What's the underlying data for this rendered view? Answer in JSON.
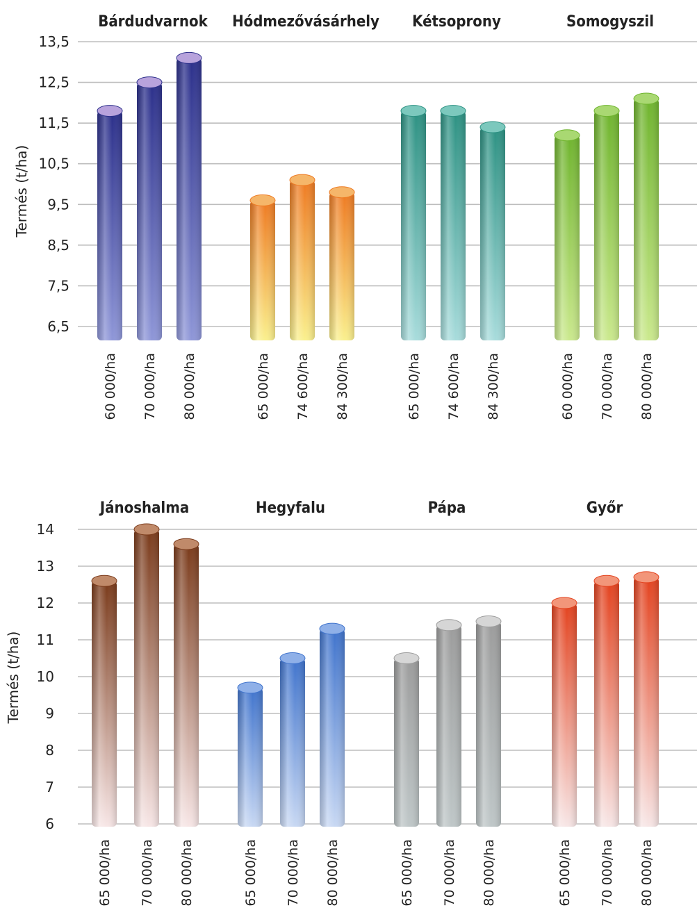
{
  "chart_data": [
    {
      "type": "bar",
      "ylabel": "Termés (t/ha)",
      "ylim": [
        6.2,
        13.5
      ],
      "yticks": [
        "13,5",
        "12,5",
        "11,5",
        "10,5",
        "9,5",
        "8,5",
        "7,5",
        "6,5"
      ],
      "ytick_values": [
        13.5,
        12.5,
        11.5,
        10.5,
        9.5,
        8.5,
        7.5,
        6.5
      ],
      "grid": true,
      "groups": [
        {
          "name": "Bárdudvarnok",
          "categories": [
            "60 000/ha",
            "70 000/ha",
            "80 000/ha"
          ],
          "values": [
            11.8,
            12.5,
            13.1
          ],
          "color_top": "#2b2f8a",
          "color_bottom": "#8f97d8",
          "cap": "#b8a3dc"
        },
        {
          "name": "Hódmezővásárhely",
          "categories": [
            "65 000/ha",
            "74 600/ha",
            "84 300/ha"
          ],
          "values": [
            9.6,
            10.1,
            9.8
          ],
          "color_top": "#ee7a22",
          "color_bottom": "#faf08e",
          "cap": "#f5b66a"
        },
        {
          "name": "Kétsoprony",
          "categories": [
            "65 000/ha",
            "74 600/ha",
            "84 300/ha"
          ],
          "values": [
            11.8,
            11.8,
            11.4
          ],
          "color_top": "#2c9182",
          "color_bottom": "#a8dcdc",
          "cap": "#7cc8bd"
        },
        {
          "name": "Somogyszil",
          "categories": [
            "60 000/ha",
            "70 000/ha",
            "80 000/ha"
          ],
          "values": [
            11.2,
            11.8,
            12.1
          ],
          "color_top": "#6fb42e",
          "color_bottom": "#cbe98e",
          "cap": "#a9d872"
        }
      ]
    },
    {
      "type": "bar",
      "ylabel": "Termés (t/ha)",
      "ylim": [
        5.8,
        14
      ],
      "yticks": [
        "14",
        "13",
        "12",
        "11",
        "10",
        "9",
        "8",
        "7",
        "6"
      ],
      "ytick_values": [
        14,
        13,
        12,
        11,
        10,
        9,
        8,
        7,
        6
      ],
      "grid": true,
      "groups": [
        {
          "name": "Jánoshalma",
          "categories": [
            "65 000/ha",
            "70 000/ha",
            "80 000/ha"
          ],
          "values": [
            12.6,
            14.0,
            13.6
          ],
          "color_top": "#7a3a1a",
          "color_bottom": "#f7e6e6",
          "cap": "#c08a6a"
        },
        {
          "name": "Hegyfalu",
          "categories": [
            "65 000/ha",
            "70 000/ha",
            "80 000/ha"
          ],
          "values": [
            9.7,
            10.5,
            11.3
          ],
          "color_top": "#3f73cc",
          "color_bottom": "#c8d8f3",
          "cap": "#8fb0e8"
        },
        {
          "name": "Pápa",
          "categories": [
            "65 000/ha",
            "70 000/ha",
            "80 000/ha"
          ],
          "values": [
            10.5,
            11.4,
            11.5
          ],
          "color_top": "#9c9c9c",
          "color_bottom": "#bfc7c8",
          "cap": "#d6d6d6"
        },
        {
          "name": "Győr",
          "categories": [
            "65 000/ha",
            "70 000/ha",
            "80 000/ha"
          ],
          "values": [
            12.0,
            12.6,
            12.7
          ],
          "color_top": "#e3421e",
          "color_bottom": "#f7e6e6",
          "cap": "#f2967a"
        }
      ]
    }
  ]
}
